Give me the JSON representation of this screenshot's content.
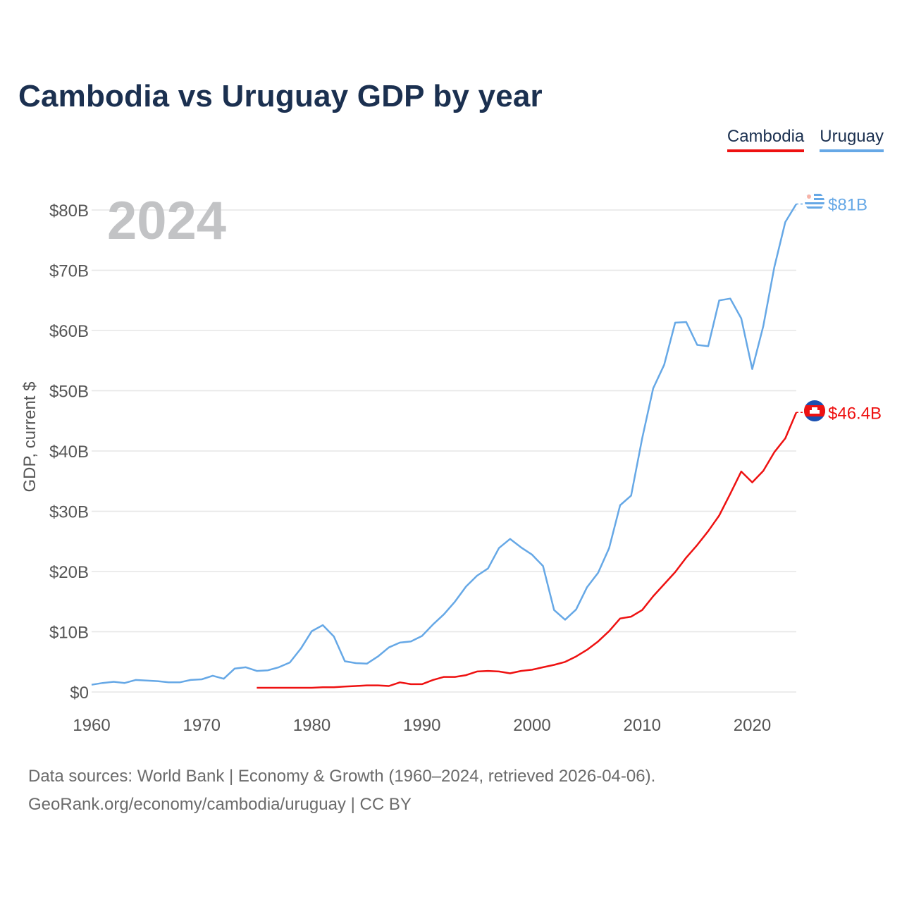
{
  "title": "Cambodia vs Uruguay GDP by year",
  "year_label": "2024",
  "legend": [
    {
      "label": "Cambodia",
      "color": "#ee1111"
    },
    {
      "label": "Uruguay",
      "color": "#66a8e6"
    }
  ],
  "source": {
    "line1": "Data sources: World Bank | Economy & Growth (1960–2024, retrieved 2026-04-06).",
    "line2": "GeoRank.org/economy/cambodia/uruguay | CC BY"
  },
  "chart_data": {
    "type": "line",
    "title": "Cambodia vs Uruguay GDP by year",
    "xlabel": "",
    "ylabel": "GDP, current $",
    "xlim": [
      1960,
      2024
    ],
    "ylim": [
      0,
      80
    ],
    "x_ticks": [
      1960,
      1970,
      1980,
      1990,
      2000,
      2010,
      2020
    ],
    "y_ticks": [
      {
        "value": 0,
        "label": "$0"
      },
      {
        "value": 10,
        "label": "$10B"
      },
      {
        "value": 20,
        "label": "$20B"
      },
      {
        "value": 30,
        "label": "$30B"
      },
      {
        "value": 40,
        "label": "$40B"
      },
      {
        "value": 50,
        "label": "$50B"
      },
      {
        "value": 60,
        "label": "$60B"
      },
      {
        "value": 70,
        "label": "$70B"
      },
      {
        "value": 80,
        "label": "$80B"
      }
    ],
    "grid": true,
    "series": [
      {
        "name": "Uruguay",
        "color": "#66a8e6",
        "end_label": "$81B",
        "x": [
          1960,
          1961,
          1962,
          1963,
          1964,
          1965,
          1966,
          1967,
          1968,
          1969,
          1970,
          1971,
          1972,
          1973,
          1974,
          1975,
          1976,
          1977,
          1978,
          1979,
          1980,
          1981,
          1982,
          1983,
          1984,
          1985,
          1986,
          1987,
          1988,
          1989,
          1990,
          1991,
          1992,
          1993,
          1994,
          1995,
          1996,
          1997,
          1998,
          1999,
          2000,
          2001,
          2002,
          2003,
          2004,
          2005,
          2006,
          2007,
          2008,
          2009,
          2010,
          2011,
          2012,
          2013,
          2014,
          2015,
          2016,
          2017,
          2018,
          2019,
          2020,
          2021,
          2022,
          2023,
          2024
        ],
        "values": [
          1.2,
          1.5,
          1.7,
          1.5,
          2.0,
          1.9,
          1.8,
          1.6,
          1.6,
          2.0,
          2.1,
          2.7,
          2.2,
          3.9,
          4.1,
          3.5,
          3.6,
          4.1,
          4.9,
          7.2,
          10.1,
          11.1,
          9.2,
          5.1,
          4.8,
          4.7,
          5.9,
          7.4,
          8.2,
          8.4,
          9.3,
          11.2,
          12.9,
          15.0,
          17.5,
          19.3,
          20.5,
          23.9,
          25.4,
          24.0,
          22.8,
          20.9,
          13.6,
          12.0,
          13.7,
          17.4,
          19.8,
          23.9,
          31.0,
          32.6,
          42.1,
          50.4,
          54.3,
          61.3,
          61.4,
          57.6,
          57.4,
          65.0,
          65.3,
          62.0,
          53.6,
          60.7,
          70.5,
          78.0,
          81.0
        ]
      },
      {
        "name": "Cambodia",
        "color": "#ee1111",
        "end_label": "$46.4B",
        "x": [
          1975,
          1976,
          1977,
          1978,
          1979,
          1980,
          1981,
          1982,
          1983,
          1984,
          1985,
          1986,
          1987,
          1988,
          1989,
          1990,
          1991,
          1992,
          1993,
          1994,
          1995,
          1996,
          1997,
          1998,
          1999,
          2000,
          2001,
          2002,
          2003,
          2004,
          2005,
          2006,
          2007,
          2008,
          2009,
          2010,
          2011,
          2012,
          2013,
          2014,
          2015,
          2016,
          2017,
          2018,
          2019,
          2020,
          2021,
          2022,
          2023,
          2024
        ],
        "values": [
          0.7,
          0.7,
          0.7,
          0.7,
          0.7,
          0.7,
          0.8,
          0.8,
          0.9,
          1.0,
          1.1,
          1.1,
          1.0,
          1.6,
          1.3,
          1.3,
          2.0,
          2.5,
          2.5,
          2.8,
          3.4,
          3.5,
          3.4,
          3.1,
          3.5,
          3.7,
          4.1,
          4.5,
          5.0,
          5.9,
          7.0,
          8.4,
          10.1,
          12.2,
          12.5,
          13.6,
          15.9,
          17.9,
          19.9,
          22.3,
          24.4,
          26.7,
          29.3,
          32.9,
          36.6,
          34.8,
          36.7,
          39.8,
          42.1,
          46.4
        ]
      }
    ]
  }
}
